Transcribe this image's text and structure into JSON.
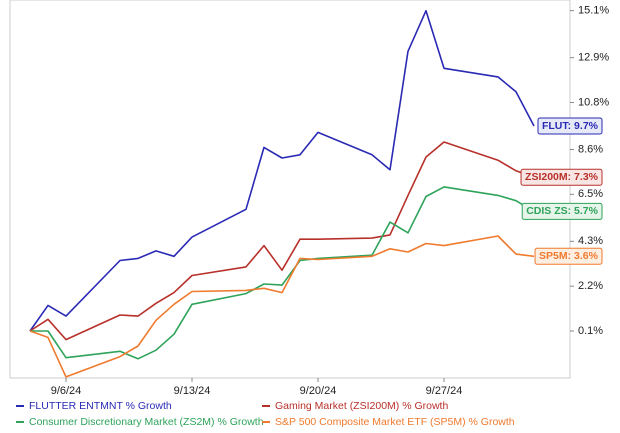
{
  "chart_data": {
    "type": "line",
    "x": [
      "9/4/24",
      "9/5/24",
      "9/6/24",
      "9/9/24",
      "9/10/24",
      "9/11/24",
      "9/12/24",
      "9/13/24",
      "9/16/24",
      "9/17/24",
      "9/18/24",
      "9/19/24",
      "9/20/24",
      "9/23/24",
      "9/24/24",
      "9/25/24",
      "9/26/24",
      "9/27/24",
      "9/30/24",
      "10/1/24",
      "10/2/24"
    ],
    "xlim": [
      "9/3/24",
      "10/4/24"
    ],
    "xticks": [
      "9/6/24",
      "9/13/24",
      "9/20/24",
      "9/27/24"
    ],
    "ylim": [
      -2.1,
      15.6
    ],
    "yticks": [
      {
        "value": 0.1,
        "label": "0.1%"
      },
      {
        "value": 2.2,
        "label": "2.2%"
      },
      {
        "value": 4.3,
        "label": "4.3%"
      },
      {
        "value": 6.5,
        "label": "6.5%"
      },
      {
        "value": 8.6,
        "label": "8.6%"
      },
      {
        "value": 10.8,
        "label": "10.8%"
      },
      {
        "value": 12.9,
        "label": "12.9%"
      },
      {
        "value": 15.1,
        "label": "15.1%"
      }
    ],
    "y_axis_side": "right",
    "series": [
      {
        "name": "FLUTTER ENTMNT % Growth",
        "color": "#2a2ab5",
        "end_label": "FLUT: 9.7%",
        "label_fill": "#e6e9f7",
        "values": [
          0.1,
          1.3,
          0.8,
          3.4,
          3.5,
          3.85,
          3.6,
          4.5,
          5.8,
          8.7,
          8.2,
          8.35,
          9.4,
          8.35,
          7.65,
          13.2,
          15.1,
          12.4,
          12.0,
          11.3,
          9.7
        ]
      },
      {
        "name": "Gaming Market (ZSI200M) % Growth",
        "color": "#b8302a",
        "end_label": "ZSI200M: 7.3%",
        "label_fill": "#f8e6e4",
        "values": [
          0.1,
          0.65,
          -0.3,
          0.85,
          0.8,
          1.4,
          1.9,
          2.7,
          3.1,
          4.1,
          2.95,
          4.4,
          4.4,
          4.45,
          4.6,
          6.45,
          8.25,
          8.95,
          8.1,
          7.6,
          7.3
        ]
      },
      {
        "name": "Consumer Discretionary Market (ZS2M) % Growth",
        "color": "#2ea35a",
        "end_label": "CDIS ZS: 5.7%",
        "label_fill": "#e6f4ea",
        "values": [
          0.1,
          0.1,
          -1.15,
          -0.85,
          -1.2,
          -0.8,
          -0.05,
          1.35,
          1.85,
          2.3,
          2.25,
          3.4,
          3.5,
          3.65,
          5.2,
          4.7,
          6.4,
          6.85,
          6.45,
          6.2,
          5.7
        ]
      },
      {
        "name": "S&P 500 Composite Market ETF (SP5M) % Growth",
        "color": "#f07a2e",
        "end_label": "SP5M: 3.6%",
        "label_fill": "#fdeee2",
        "values": [
          0.1,
          -0.2,
          -2.05,
          -1.1,
          -0.6,
          0.6,
          1.35,
          1.95,
          2.0,
          2.1,
          1.9,
          3.5,
          3.45,
          3.6,
          3.95,
          3.8,
          4.2,
          4.1,
          4.55,
          3.7,
          3.6
        ]
      }
    ]
  }
}
